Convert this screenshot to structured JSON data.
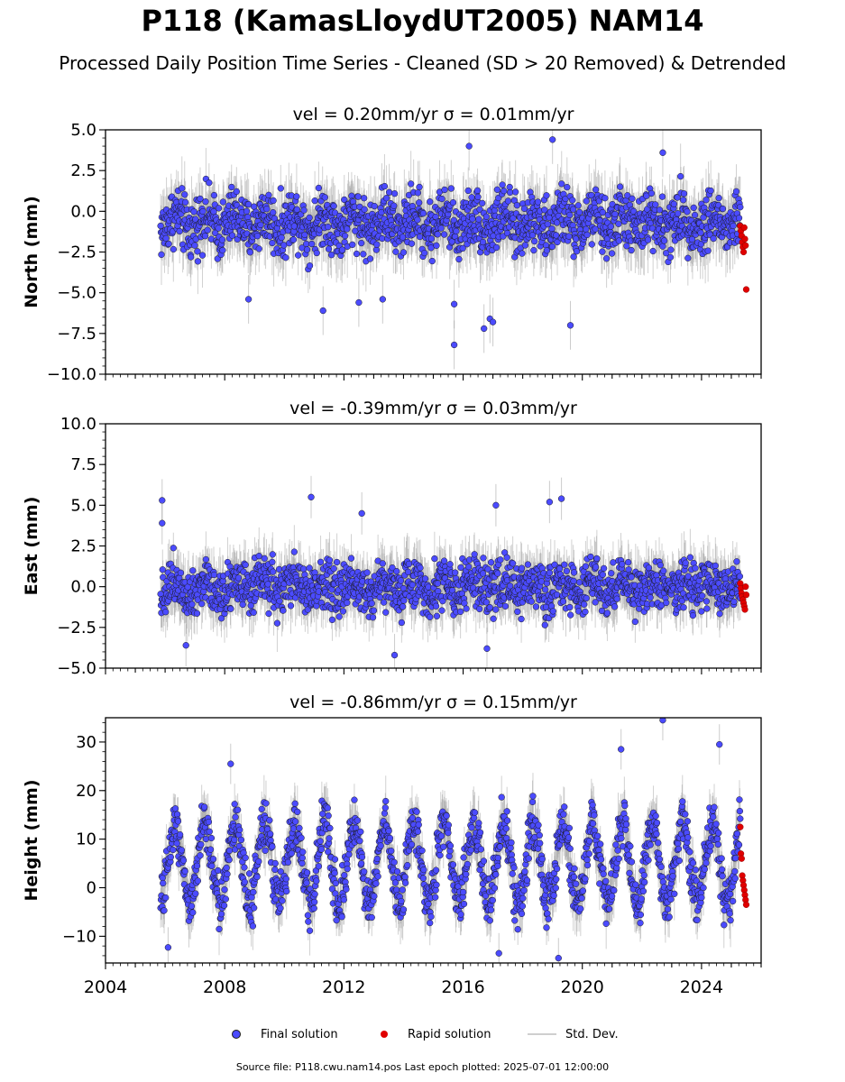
{
  "title": "P118 (KamasLloydUT2005) NAM14",
  "subtitle": "Processed Daily Position Time Series - Cleaned (SD > 20 Removed) & Detrended",
  "legend": {
    "final": "Final solution",
    "rapid": "Rapid solution",
    "std": "Std. Dev."
  },
  "source": "Source file: P118.cwu.nam14.pos  Last epoch plotted: 2025-07-01 12:00:00",
  "colors": {
    "final": "#4b4bff",
    "rapid": "#e00000",
    "std": "#cfcfcf",
    "marker_edge": "#1a1a1a"
  },
  "chart_data": [
    {
      "type": "scatter",
      "panel": "north",
      "title": "vel = 0.20mm/yr   σ = 0.01mm/yr",
      "ylabel": "North (mm)",
      "xlim": [
        2004.0,
        2026.0
      ],
      "ylim": [
        -10.0,
        5.0
      ],
      "yticks": [
        -10.0,
        -7.5,
        -5.0,
        -2.5,
        0.0,
        2.5,
        5.0
      ],
      "ytick_labels": [
        "−10.0",
        "−7.5",
        "−5.0",
        "−2.5",
        "0.0",
        "2.5",
        "5.0"
      ],
      "final_solution": {
        "start": 2005.85,
        "end": 2025.3,
        "mean": -0.7,
        "noise_sd": 1.15,
        "annual_amp": 0.5,
        "outliers": [
          [
            2015.7,
            -8.2
          ],
          [
            2016.7,
            -7.2
          ],
          [
            2016.9,
            -6.6
          ],
          [
            2017.0,
            -6.8
          ],
          [
            2011.3,
            -6.1
          ],
          [
            2012.5,
            -5.6
          ],
          [
            2015.7,
            -5.7
          ],
          [
            2016.2,
            4.0
          ],
          [
            2019.0,
            4.4
          ],
          [
            2022.7,
            3.6
          ],
          [
            2019.6,
            -7.0
          ],
          [
            2013.3,
            -5.4
          ],
          [
            2008.8,
            -5.4
          ]
        ]
      },
      "rapid_solution": {
        "x_start": 2025.3,
        "x_end": 2025.5,
        "values": [
          -0.9,
          -1.2,
          -1.5,
          -1.9,
          -2.2,
          -2.5,
          -1.0,
          -1.7,
          -2.1,
          -4.8
        ]
      }
    },
    {
      "type": "scatter",
      "panel": "east",
      "title": "vel = -0.39mm/yr   σ = 0.03mm/yr",
      "ylabel": "East (mm)",
      "xlim": [
        2004.0,
        2026.0
      ],
      "ylim": [
        -5.0,
        10.0
      ],
      "yticks": [
        -5.0,
        -2.5,
        0.0,
        2.5,
        5.0,
        7.5,
        10.0
      ],
      "ytick_labels": [
        "−5.0",
        "−2.5",
        "0.0",
        "2.5",
        "5.0",
        "7.5",
        "10.0"
      ],
      "final_solution": {
        "start": 2005.85,
        "end": 2025.3,
        "mean": 0.0,
        "noise_sd": 1.0,
        "annual_amp": 0.4,
        "outliers": [
          [
            2005.9,
            5.3
          ],
          [
            2005.9,
            3.9
          ],
          [
            2010.9,
            5.5
          ],
          [
            2017.1,
            5.0
          ],
          [
            2018.9,
            5.2
          ],
          [
            2019.3,
            5.4
          ],
          [
            2012.6,
            4.5
          ],
          [
            2013.7,
            -4.2
          ],
          [
            2006.7,
            -3.6
          ],
          [
            2016.8,
            -3.8
          ]
        ]
      },
      "rapid_solution": {
        "x_start": 2025.3,
        "x_end": 2025.5,
        "values": [
          0.2,
          -0.1,
          -0.4,
          -0.6,
          -0.8,
          -1.0,
          -1.2,
          -1.4,
          0.0,
          -0.5
        ]
      }
    },
    {
      "type": "scatter",
      "panel": "height",
      "title": "vel = -0.86mm/yr   σ = 0.15mm/yr",
      "ylabel": "Height (mm)",
      "xlim": [
        2004.0,
        2026.0
      ],
      "ylim": [
        -15.5,
        35.0
      ],
      "yticks": [
        -10,
        0,
        10,
        20,
        30
      ],
      "ytick_labels": [
        "−10",
        "0",
        "10",
        "20",
        "30"
      ],
      "xticks": [
        2004,
        2008,
        2012,
        2016,
        2020,
        2024
      ],
      "xtick_labels": [
        "2004",
        "2008",
        "2012",
        "2016",
        "2020",
        "2024"
      ],
      "final_solution": {
        "start": 2005.85,
        "end": 2025.3,
        "mean": 5.0,
        "noise_sd": 3.2,
        "annual_amp": 8.0,
        "outliers": [
          [
            2022.7,
            34.5
          ],
          [
            2024.6,
            29.5
          ],
          [
            2019.2,
            -14.5
          ],
          [
            2017.2,
            -13.5
          ],
          [
            2006.1,
            -12.3
          ],
          [
            2008.2,
            25.5
          ],
          [
            2021.3,
            28.5
          ]
        ]
      },
      "rapid_solution": {
        "x_start": 2025.3,
        "x_end": 2025.5,
        "values": [
          12.5,
          7.0,
          6.0,
          2.5,
          1.5,
          0.5,
          -0.5,
          -1.5,
          -2.5,
          -3.5
        ]
      }
    }
  ]
}
